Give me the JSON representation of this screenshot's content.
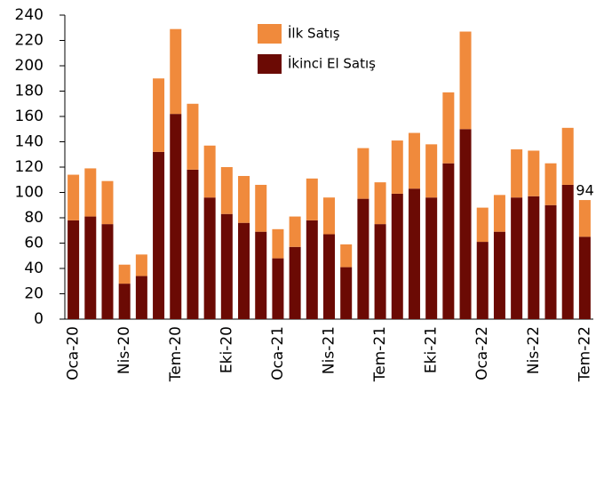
{
  "chart_data": {
    "type": "stacked_bar",
    "categories": [
      "Oca-20",
      null,
      null,
      "Nis-20",
      null,
      null,
      "Tem-20",
      null,
      null,
      "Eki-20",
      null,
      null,
      "Oca-21",
      null,
      null,
      "Nis-21",
      null,
      null,
      "Tem-21",
      null,
      null,
      "Eki-21",
      null,
      null,
      "Oca-22",
      null,
      null,
      "Nis-22",
      null,
      null,
      "Tem-22"
    ],
    "series": [
      {
        "name": "İkinci El Satış",
        "color": "#6b0a04",
        "values": [
          78,
          81,
          75,
          28,
          34,
          132,
          162,
          118,
          96,
          83,
          76,
          69,
          48,
          57,
          78,
          67,
          41,
          95,
          75,
          99,
          103,
          96,
          123,
          150,
          61,
          69,
          96,
          97,
          90,
          106,
          65
        ]
      },
      {
        "name": "İlk Satış",
        "color": "#f08a3c",
        "values": [
          36,
          38,
          34,
          15,
          17,
          58,
          67,
          52,
          41,
          37,
          37,
          37,
          23,
          24,
          33,
          29,
          18,
          40,
          33,
          42,
          44,
          42,
          56,
          77,
          27,
          29,
          38,
          36,
          33,
          45,
          29
        ]
      }
    ],
    "annotation": "94",
    "ylim": [
      0,
      240
    ],
    "yticks": [
      0,
      20,
      40,
      60,
      80,
      100,
      120,
      140,
      160,
      180,
      200,
      220,
      240
    ],
    "grid": false
  }
}
